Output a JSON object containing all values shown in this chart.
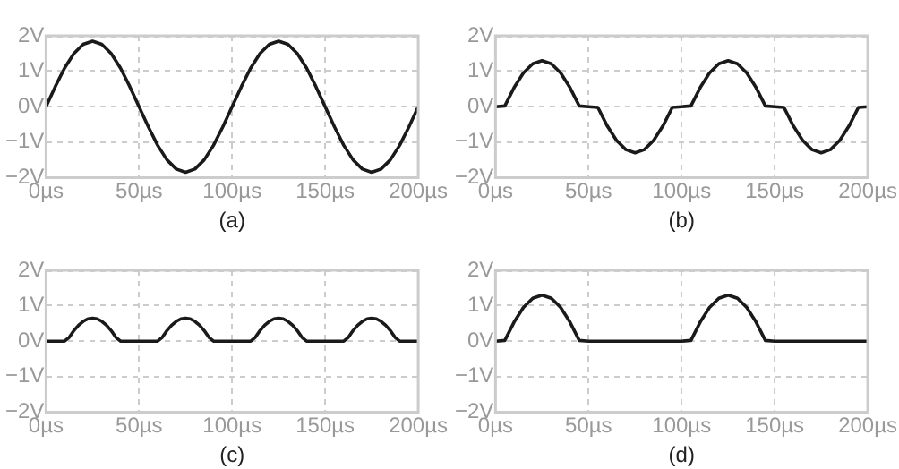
{
  "chart_data": [
    {
      "type": "line",
      "xlabel": "(a)",
      "x": [
        0,
        5,
        10,
        15,
        20,
        25,
        30,
        35,
        40,
        45,
        50,
        55,
        60,
        65,
        70,
        75,
        80,
        85,
        90,
        95,
        100,
        105,
        110,
        115,
        120,
        125,
        130,
        135,
        140,
        145,
        150,
        155,
        160,
        165,
        170,
        175,
        180,
        185,
        190,
        195,
        200
      ],
      "series": [
        {
          "color": "#1a1a1a",
          "values": [
            0,
            0.57,
            1.09,
            1.5,
            1.76,
            1.85,
            1.76,
            1.5,
            1.09,
            0.57,
            0,
            -0.57,
            -1.09,
            -1.5,
            -1.76,
            -1.85,
            -1.76,
            -1.5,
            -1.09,
            -0.57,
            0,
            0.57,
            1.09,
            1.5,
            1.76,
            1.85,
            1.76,
            1.5,
            1.09,
            0.57,
            0,
            -0.57,
            -1.09,
            -1.5,
            -1.76,
            -1.85,
            -1.76,
            -1.5,
            -1.09,
            -0.57,
            0
          ]
        }
      ],
      "xlim": [
        0,
        200
      ],
      "xticks": [
        {
          "value": 0,
          "label": "0µs"
        },
        {
          "value": 50,
          "label": "50µs"
        },
        {
          "value": 100,
          "label": "100µs"
        },
        {
          "value": 150,
          "label": "150µs"
        },
        {
          "value": 200,
          "label": "200µs"
        }
      ],
      "ylim": [
        -2,
        2
      ],
      "yticks": [
        {
          "value": -2,
          "label": "−2V"
        },
        {
          "value": -1,
          "label": "−1V"
        },
        {
          "value": 0,
          "label": "0V"
        },
        {
          "value": 1,
          "label": "1V"
        },
        {
          "value": 2,
          "label": "2V"
        }
      ],
      "grid": true,
      "legend": false,
      "marker": "none",
      "line_style": "solid"
    },
    {
      "type": "line",
      "xlabel": "(b)",
      "x": [
        0,
        5,
        10,
        15,
        20,
        25,
        30,
        35,
        40,
        45,
        50,
        55,
        60,
        65,
        70,
        75,
        80,
        85,
        90,
        95,
        100,
        105,
        110,
        115,
        120,
        125,
        130,
        135,
        140,
        145,
        150,
        155,
        160,
        165,
        170,
        175,
        180,
        185,
        190,
        195,
        200
      ],
      "series": [
        {
          "color": "#1a1a1a",
          "values": [
            0,
            0.02,
            0.54,
            0.95,
            1.21,
            1.3,
            1.21,
            0.95,
            0.54,
            0.02,
            0,
            -0.02,
            -0.54,
            -0.95,
            -1.21,
            -1.3,
            -1.21,
            -0.95,
            -0.54,
            -0.02,
            0,
            0.02,
            0.54,
            0.95,
            1.21,
            1.3,
            1.21,
            0.95,
            0.54,
            0.02,
            0,
            -0.02,
            -0.54,
            -0.95,
            -1.21,
            -1.3,
            -1.21,
            -0.95,
            -0.54,
            -0.02,
            0
          ]
        }
      ],
      "xlim": [
        0,
        200
      ],
      "xticks": [
        {
          "value": 0,
          "label": "0µs"
        },
        {
          "value": 50,
          "label": "50µs"
        },
        {
          "value": 100,
          "label": "100µs"
        },
        {
          "value": 150,
          "label": "150µs"
        },
        {
          "value": 200,
          "label": "200µs"
        }
      ],
      "ylim": [
        -2,
        2
      ],
      "yticks": [
        {
          "value": -2,
          "label": "−2V"
        },
        {
          "value": -1,
          "label": "−1V"
        },
        {
          "value": 0,
          "label": "0V"
        },
        {
          "value": 1,
          "label": "1V"
        },
        {
          "value": 2,
          "label": "2V"
        }
      ],
      "grid": true,
      "legend": false,
      "marker": "none",
      "line_style": "solid"
    },
    {
      "type": "line",
      "xlabel": "(c)",
      "x": [
        0,
        2.5,
        5,
        7.5,
        10,
        12.5,
        15,
        17.5,
        20,
        22.5,
        25,
        27.5,
        30,
        32.5,
        35,
        37.5,
        40,
        42.5,
        45,
        47.5,
        50,
        52.5,
        55,
        57.5,
        60,
        62.5,
        65,
        67.5,
        70,
        72.5,
        75,
        77.5,
        80,
        82.5,
        85,
        87.5,
        90,
        92.5,
        95,
        97.5,
        100,
        102.5,
        105,
        107.5,
        110,
        112.5,
        115,
        117.5,
        120,
        122.5,
        125,
        127.5,
        130,
        132.5,
        135,
        137.5,
        140,
        142.5,
        145,
        147.5,
        150,
        152.5,
        155,
        157.5,
        160,
        162.5,
        165,
        167.5,
        170,
        172.5,
        175,
        177.5,
        180,
        182.5,
        185,
        187.5,
        190,
        192.5,
        195,
        197.5,
        200
      ],
      "series": [
        {
          "color": "#1a1a1a",
          "values": [
            0,
            0,
            0,
            0,
            0,
            0.11,
            0.3,
            0.45,
            0.56,
            0.63,
            0.65,
            0.63,
            0.56,
            0.45,
            0.3,
            0.11,
            0,
            0,
            0,
            0,
            0,
            0,
            0,
            0,
            0,
            0.11,
            0.3,
            0.45,
            0.56,
            0.63,
            0.65,
            0.63,
            0.56,
            0.45,
            0.3,
            0.11,
            0,
            0,
            0,
            0,
            0,
            0,
            0,
            0,
            0,
            0.11,
            0.3,
            0.45,
            0.56,
            0.63,
            0.65,
            0.63,
            0.56,
            0.45,
            0.3,
            0.11,
            0,
            0,
            0,
            0,
            0,
            0,
            0,
            0,
            0,
            0.11,
            0.3,
            0.45,
            0.56,
            0.63,
            0.65,
            0.63,
            0.56,
            0.45,
            0.3,
            0.11,
            0,
            0,
            0,
            0,
            0
          ]
        }
      ],
      "xlim": [
        0,
        200
      ],
      "xticks": [
        {
          "value": 0,
          "label": "0µs"
        },
        {
          "value": 50,
          "label": "50µs"
        },
        {
          "value": 100,
          "label": "100µs"
        },
        {
          "value": 150,
          "label": "150µs"
        },
        {
          "value": 200,
          "label": "200µs"
        }
      ],
      "ylim": [
        -2,
        2
      ],
      "yticks": [
        {
          "value": -2,
          "label": "−2V"
        },
        {
          "value": -1,
          "label": "−1V"
        },
        {
          "value": 0,
          "label": "0V"
        },
        {
          "value": 1,
          "label": "1V"
        },
        {
          "value": 2,
          "label": "2V"
        }
      ],
      "grid": true,
      "legend": false,
      "marker": "none",
      "line_style": "solid"
    },
    {
      "type": "line",
      "xlabel": "(d)",
      "x": [
        0,
        5,
        10,
        15,
        20,
        25,
        30,
        35,
        40,
        45,
        50,
        55,
        60,
        65,
        70,
        75,
        80,
        85,
        90,
        95,
        100,
        105,
        110,
        115,
        120,
        125,
        130,
        135,
        140,
        145,
        150,
        155,
        160,
        165,
        170,
        175,
        180,
        185,
        190,
        195,
        200
      ],
      "series": [
        {
          "color": "#1a1a1a",
          "values": [
            0,
            0.02,
            0.54,
            0.95,
            1.21,
            1.3,
            1.21,
            0.95,
            0.54,
            0.02,
            0,
            0,
            0,
            0,
            0,
            0,
            0,
            0,
            0,
            0,
            0,
            0.02,
            0.54,
            0.95,
            1.21,
            1.3,
            1.21,
            0.95,
            0.54,
            0.02,
            0,
            0,
            0,
            0,
            0,
            0,
            0,
            0,
            0,
            0,
            0
          ]
        }
      ],
      "xlim": [
        0,
        200
      ],
      "xticks": [
        {
          "value": 0,
          "label": "0µs"
        },
        {
          "value": 50,
          "label": "50µs"
        },
        {
          "value": 100,
          "label": "100µs"
        },
        {
          "value": 150,
          "label": "150µs"
        },
        {
          "value": 200,
          "label": "200µs"
        }
      ],
      "ylim": [
        -2,
        2
      ],
      "yticks": [
        {
          "value": -2,
          "label": "−2V"
        },
        {
          "value": -1,
          "label": "−1V"
        },
        {
          "value": 0,
          "label": "0V"
        },
        {
          "value": 1,
          "label": "1V"
        },
        {
          "value": 2,
          "label": "2V"
        }
      ],
      "grid": true,
      "legend": false,
      "marker": "none",
      "line_style": "solid"
    }
  ]
}
